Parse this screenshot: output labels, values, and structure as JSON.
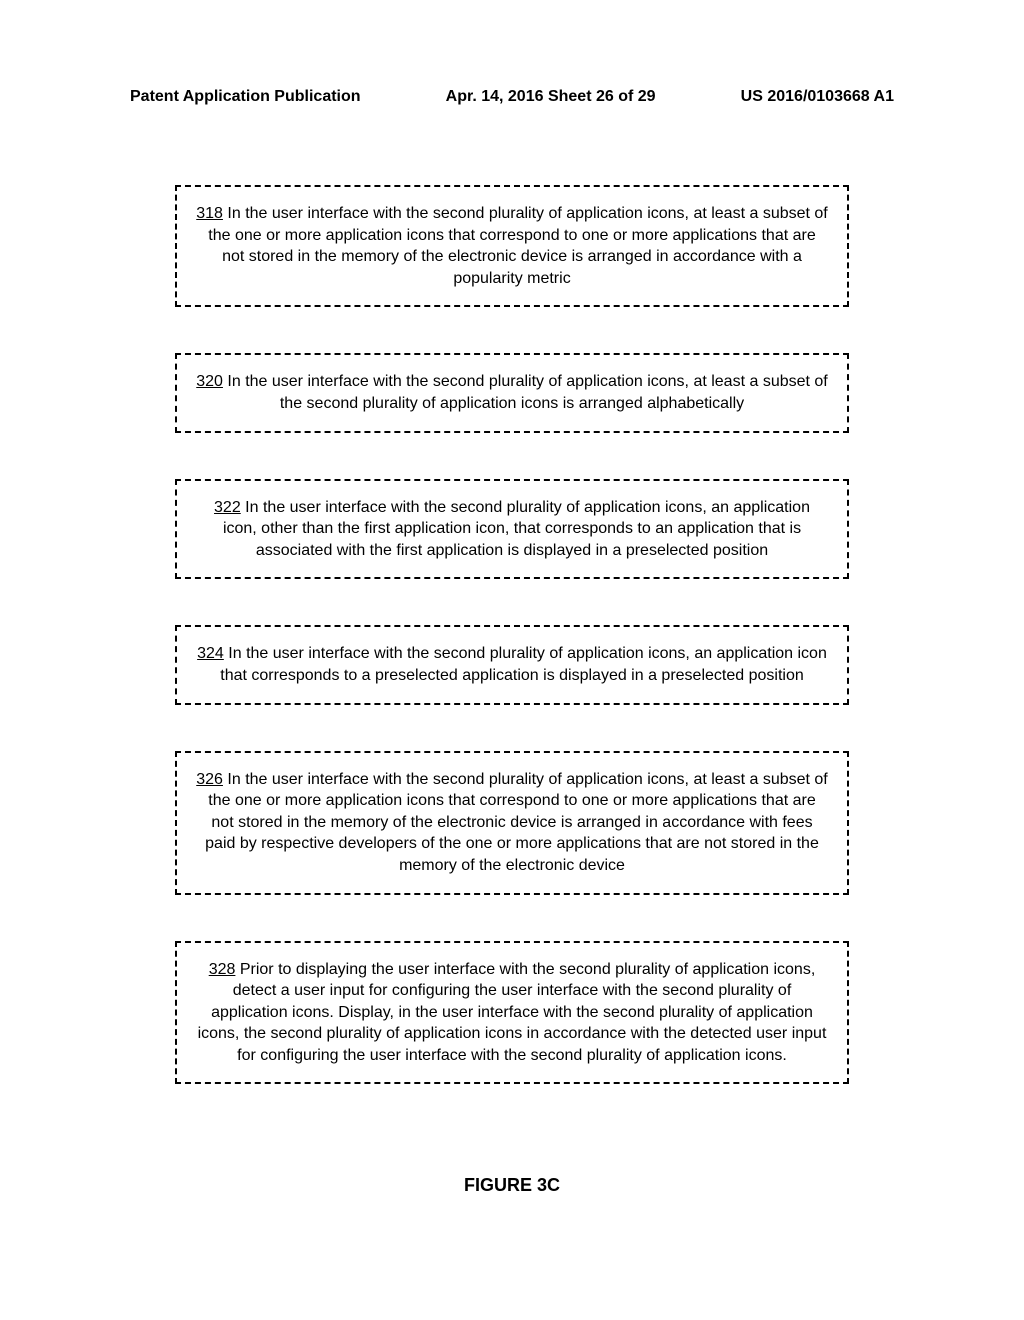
{
  "header": {
    "left": "Patent Application Publication",
    "center": "Apr. 14, 2016  Sheet 26 of 29",
    "right": "US 2016/0103668 A1"
  },
  "steps": [
    {
      "num": "318",
      "text": " In the user interface with the second plurality of application icons, at least a subset of the one or more application icons that correspond to one or more applications that are not stored in the memory of the electronic device is arranged in accordance with a popularity metric"
    },
    {
      "num": "320",
      "text": " In the user interface with the second plurality of application icons, at least a subset of the second plurality of application icons is arranged alphabetically"
    },
    {
      "num": "322",
      "text": " In the user interface with the second plurality of application icons, an application icon, other than the first application icon, that corresponds to an application that is associated with the first application is displayed in a preselected position"
    },
    {
      "num": "324",
      "text": " In the user interface with the second plurality of application icons, an application icon that corresponds to a preselected application is displayed in a preselected position"
    },
    {
      "num": "326",
      "text": " In the user interface with the second plurality of application icons, at least a subset of the one or more application icons that correspond to one or more applications that are not stored in the memory of the electronic device is arranged in accordance with fees paid by respective developers of the one or more applications that are not stored in the memory of the electronic device"
    },
    {
      "num": "328",
      "text": " Prior to displaying the user interface with the second plurality of application icons, detect a user input for configuring the user interface with the second plurality of application icons. Display, in the user interface with the second plurality of application icons, the second plurality of application icons in accordance with the detected user input for configuring the user interface with the second plurality of application icons."
    }
  ],
  "figure_label": "FIGURE 3C"
}
